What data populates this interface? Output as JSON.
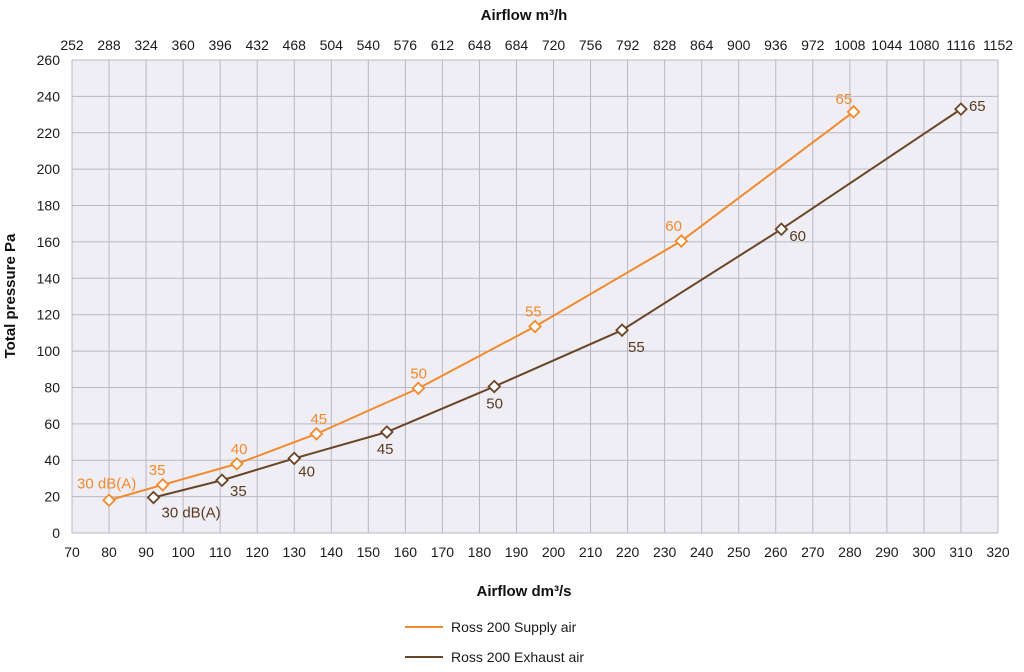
{
  "chart_data": {
    "type": "line",
    "xlabel": "Airflow dm³/s",
    "x2label": "Airflow m³/h",
    "ylabel": "Total pressure Pa",
    "xlim": [
      70,
      320
    ],
    "ylim": [
      0,
      260
    ],
    "x_ticks": [
      "70",
      "80",
      "90",
      "100",
      "110",
      "120",
      "130",
      "140",
      "150",
      "160",
      "170",
      "180",
      "190",
      "200",
      "210",
      "220",
      "230",
      "240",
      "250",
      "260",
      "270",
      "280",
      "290",
      "300",
      "310",
      "320"
    ],
    "y_ticks": [
      "0",
      "20",
      "40",
      "60",
      "80",
      "100",
      "120",
      "140",
      "160",
      "180",
      "200",
      "220",
      "240",
      "260"
    ],
    "x2_ticks": [
      "252",
      "288",
      "324",
      "360",
      "396",
      "432",
      "468",
      "504",
      "540",
      "576",
      "612",
      "648",
      "684",
      "720",
      "756",
      "792",
      "828",
      "864",
      "900",
      "936",
      "972",
      "1008",
      "1044",
      "1080",
      "1116",
      "1152"
    ],
    "grid": true,
    "legend_position": "bottom-center",
    "series": [
      {
        "name": "Ross 200 Supply air",
        "color": "#f28a2e",
        "label_color": "#f28a2e",
        "x": [
          80,
          94.5,
          114.5,
          136,
          163.5,
          195,
          234.5,
          281
        ],
        "y": [
          18,
          26.5,
          38,
          54.5,
          79.5,
          113.5,
          160.5,
          231.5
        ],
        "point_labels": [
          "30 dB(A)",
          "35",
          "40",
          "45",
          "50",
          "55",
          "60",
          "65"
        ]
      },
      {
        "name": "Ross 200 Exhaust air",
        "color": "#6b4527",
        "label_color": "#5a3a22",
        "x": [
          92,
          110.5,
          130,
          155,
          184,
          218.5,
          261.5,
          310
        ],
        "y": [
          19.5,
          29,
          41,
          55.5,
          80.5,
          111.5,
          167,
          233
        ],
        "point_labels": [
          "30 dB(A)",
          "35",
          "40",
          "45",
          "50",
          "55",
          "60",
          "65"
        ]
      }
    ]
  }
}
